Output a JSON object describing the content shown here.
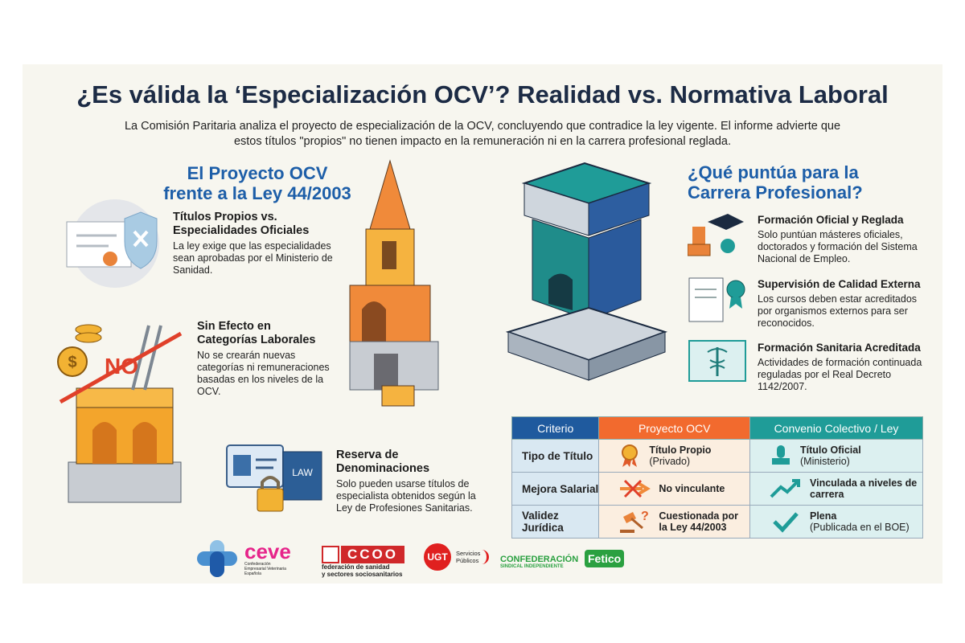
{
  "title": "¿Es válida la ‘Especialización OCV’? Realidad vs. Normativa Laboral",
  "subtitle": "La Comisión Paritaria analiza el proyecto de especialización de la OCV, concluyendo que contradice la ley vigente. El informe advierte que estos títulos \"propios\" no tienen impacto en la remuneración ni en la carrera profesional reglada.",
  "left": {
    "heading_line1": "El Proyecto OCV",
    "heading_line2": "frente a la Ley 44/2003",
    "no_label": "NO",
    "law_label": "LAW",
    "items": [
      {
        "title": "Títulos Propios vs. Especialidades Oficiales",
        "desc": "La ley exige que las especialidades sean aprobadas por el Ministerio de Sanidad.",
        "icon": "certificate-shield-icon"
      },
      {
        "title": "Sin Efecto en Categorías Laborales",
        "desc": "No se crearán nuevas categorías ni remuneraciones basadas en los niveles de la OCV.",
        "icon": "coins-ladder-no-icon"
      },
      {
        "title": "Reserva de Denominaciones",
        "desc": "Solo pueden usarse títulos de especialista obtenidos según la Ley de Profesiones Sanitarias.",
        "icon": "id-card-lock-icon"
      }
    ]
  },
  "right": {
    "heading_line1": "¿Qué puntúa para la",
    "heading_line2": "Carrera Profesional?",
    "items": [
      {
        "title": "Formación Oficial y Reglada",
        "desc": "Solo puntúan másteres oficiales, doctorados y formación del Sistema Nacional de Empleo.",
        "icon": "graduation-stamp-icon"
      },
      {
        "title": "Supervisión de Calidad Externa",
        "desc": "Los cursos deben estar acreditados por organismos externos para ser reconocidos.",
        "icon": "document-seal-icon"
      },
      {
        "title": "Formación Sanitaria Acreditada",
        "desc": "Actividades de formación continuada reguladas por el Real Decreto 1142/2007.",
        "icon": "caduceus-certificate-icon"
      }
    ]
  },
  "table": {
    "headers": [
      "Criterio",
      "Proyecto OCV",
      "Convenio Colectivo / Ley"
    ],
    "header_colors": [
      "#1f5a9e",
      "#f26a2e",
      "#1f9c98"
    ],
    "rows": [
      {
        "criterio": "Tipo de Título",
        "ocv_bold": "Título Propio",
        "ocv_note": "(Privado)",
        "ocv_icon": "ribbon-medal-icon",
        "ley_bold": "Título Oficial",
        "ley_note": "(Ministerio)",
        "ley_icon": "stamp-icon"
      },
      {
        "criterio": "Mejora Salarial",
        "ocv_bold": "No vinculante",
        "ocv_note": "",
        "ocv_icon": "crossed-arrow-icon",
        "ley_bold": "Vinculada a niveles de carrera",
        "ley_note": "",
        "ley_icon": "trend-up-icon"
      },
      {
        "criterio": "Validez Jurídica",
        "ocv_bold": "Cuestionada por la Ley 44/2003",
        "ocv_note": "",
        "ocv_icon": "gavel-question-icon",
        "ley_bold": "Plena",
        "ley_note": "(Publicada en el BOE)",
        "ley_icon": "checkmark-icon"
      }
    ]
  },
  "logos": {
    "ceve": "ceve",
    "ceve_sub": "Confederación Empresarial Veterinaria Española",
    "ccoo": "CCOO",
    "ccoo_sub1": "federación de sanidad",
    "ccoo_sub2": "y sectores sociosanitarios",
    "ugt": "UGT",
    "ugt_sub1": "Servicios",
    "ugt_sub2": "Públicos",
    "csi1": "CONFEDERACIÓN",
    "csi2": "SINDICAL INDEPENDIENTE",
    "fetico": "Fetico"
  }
}
